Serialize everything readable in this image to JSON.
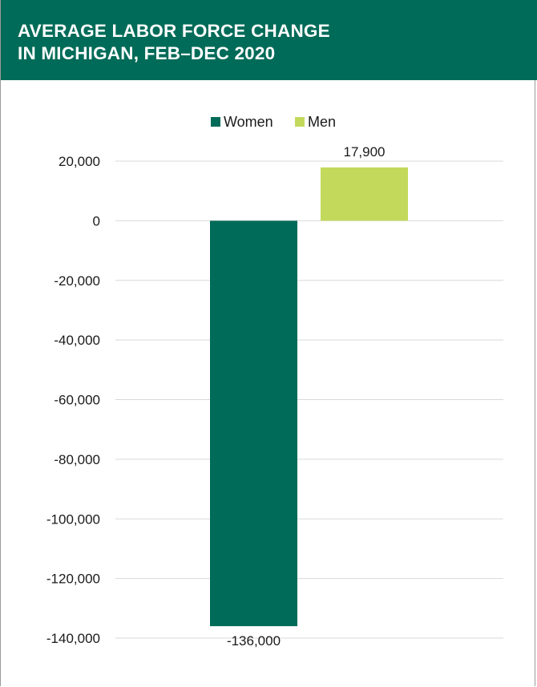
{
  "header": {
    "title_line1": "AVERAGE LABOR FORCE CHANGE",
    "title_line2": "IN MICHIGAN, FEB–DEC 2020"
  },
  "colors": {
    "header_bg": "#006b58",
    "women": "#006b58",
    "men": "#c2d95b",
    "grid": "#d9d9d9"
  },
  "chart_data": {
    "type": "bar",
    "title": "AVERAGE LABOR FORCE CHANGE IN MICHIGAN, FEB–DEC 2020",
    "categories": [
      ""
    ],
    "series": [
      {
        "name": "Women",
        "values": [
          -136000
        ],
        "label": "-136,000",
        "color": "#006b58"
      },
      {
        "name": "Men",
        "values": [
          17900
        ],
        "label": "17,900",
        "color": "#c2d95b"
      }
    ],
    "ylim": [
      -140000,
      20000
    ],
    "yticks": [
      20000,
      0,
      -20000,
      -40000,
      -60000,
      -80000,
      -100000,
      -120000,
      -140000
    ],
    "ytick_labels": [
      "20,000",
      "0",
      "-20,000",
      "-40,000",
      "-60,000",
      "-80,000",
      "-100,000",
      "-120,000",
      "-140,000"
    ],
    "xlabel": "",
    "ylabel": "",
    "grid": true,
    "legend": "top-center"
  }
}
